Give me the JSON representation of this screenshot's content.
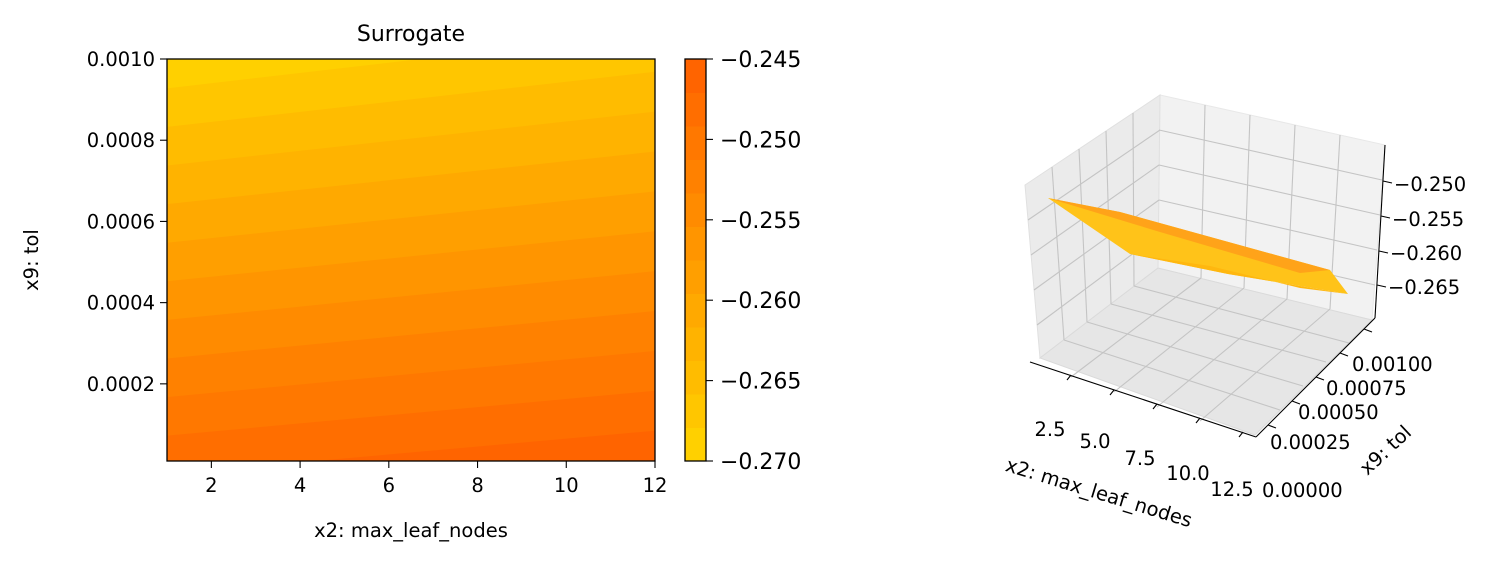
{
  "chart_data": [
    {
      "type": "heatmap",
      "title": "Surrogate",
      "xlabel": "x2: max_leaf_nodes",
      "ylabel": "x9: tol",
      "xlim": [
        1,
        12
      ],
      "ylim": [
        1e-05,
        0.001
      ],
      "x_ticks": [
        "2",
        "4",
        "6",
        "8",
        "10",
        "12"
      ],
      "y_ticks": [
        "0.0002",
        "0.0004",
        "0.0006",
        "0.0008",
        "0.0010"
      ],
      "grid": false,
      "colormap": {
        "low": "#ffd500",
        "high": "#ff5f00"
      },
      "z_model": {
        "z_at_xmin_ymax": -0.2695,
        "z_at_xmax_ymax": -0.2665,
        "z_at_xmin_ymin": -0.2478,
        "z_at_xmax_ymin": -0.2455
      },
      "colorbar": {
        "ticks": [
          "−0.245",
          "−0.250",
          "−0.255",
          "−0.260",
          "−0.265",
          "−0.270"
        ],
        "range": [
          -0.27,
          -0.245
        ],
        "levels": 12
      }
    },
    {
      "type": "surface",
      "xlabel": "x2: max_leaf_nodes",
      "ylabel": "x9: tol",
      "x_ticks": [
        "2.5",
        "5.0",
        "7.5",
        "10.0",
        "12.5"
      ],
      "y_ticks": [
        "0.00000",
        "0.00025",
        "0.00050",
        "0.00075",
        "0.00100"
      ],
      "z_ticks": [
        "−0.250",
        "−0.255",
        "−0.260",
        "−0.265"
      ],
      "xlim": [
        1,
        12
      ],
      "ylim": [
        1e-05,
        0.001
      ],
      "zlim": [
        -0.2695,
        -0.2455
      ],
      "grid": true
    }
  ]
}
